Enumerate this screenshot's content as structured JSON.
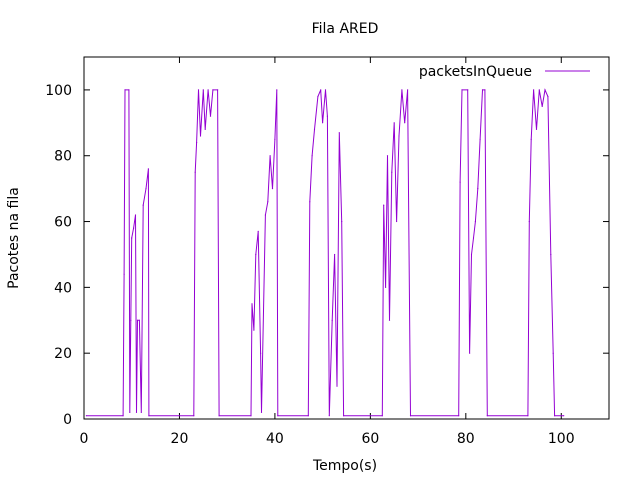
{
  "chart_data": {
    "type": "line",
    "title": "Fila ARED",
    "xlabel": "Tempo(s)",
    "ylabel": "Pacotes na fila",
    "xlim": [
      0,
      110
    ],
    "ylim": [
      0,
      110
    ],
    "xticks": [
      0,
      20,
      40,
      60,
      80,
      100
    ],
    "yticks": [
      0,
      20,
      40,
      60,
      80,
      100
    ],
    "grid": false,
    "legend_position": "top-right",
    "series": [
      {
        "name": "packetsInQueue",
        "color": "#9400d3",
        "points": [
          [
            0.5,
            1
          ],
          [
            8.2,
            1
          ],
          [
            8.4,
            44
          ],
          [
            8.6,
            100
          ],
          [
            9.4,
            100
          ],
          [
            9.6,
            2
          ],
          [
            9.8,
            30
          ],
          [
            10.0,
            55
          ],
          [
            10.4,
            58
          ],
          [
            10.8,
            62
          ],
          [
            11.0,
            2
          ],
          [
            11.2,
            30
          ],
          [
            11.6,
            30
          ],
          [
            12.0,
            2
          ],
          [
            12.4,
            65
          ],
          [
            13.0,
            70
          ],
          [
            13.5,
            76
          ],
          [
            13.6,
            1
          ],
          [
            23.0,
            1
          ],
          [
            23.3,
            75
          ],
          [
            23.6,
            84
          ],
          [
            24.0,
            100
          ],
          [
            24.4,
            86
          ],
          [
            25.0,
            100
          ],
          [
            25.4,
            88
          ],
          [
            26.0,
            100
          ],
          [
            26.5,
            92
          ],
          [
            27.0,
            100
          ],
          [
            28.0,
            100
          ],
          [
            28.3,
            1
          ],
          [
            35.0,
            1
          ],
          [
            35.2,
            35
          ],
          [
            35.6,
            27
          ],
          [
            36.0,
            50
          ],
          [
            36.5,
            57
          ],
          [
            37.0,
            20
          ],
          [
            37.2,
            2
          ],
          [
            38.0,
            62
          ],
          [
            38.5,
            66
          ],
          [
            39.0,
            80
          ],
          [
            39.5,
            70
          ],
          [
            40.0,
            85
          ],
          [
            40.4,
            100
          ],
          [
            40.6,
            1
          ],
          [
            47.0,
            1
          ],
          [
            47.3,
            66
          ],
          [
            47.8,
            80
          ],
          [
            48.3,
            88
          ],
          [
            49.0,
            98
          ],
          [
            49.6,
            100
          ],
          [
            50.0,
            90
          ],
          [
            50.6,
            100
          ],
          [
            51.0,
            92
          ],
          [
            51.4,
            1
          ],
          [
            52.0,
            30
          ],
          [
            52.5,
            50
          ],
          [
            53.0,
            10
          ],
          [
            53.5,
            87
          ],
          [
            54.0,
            60
          ],
          [
            54.4,
            1
          ],
          [
            62.5,
            1
          ],
          [
            62.8,
            65
          ],
          [
            63.2,
            40
          ],
          [
            63.6,
            80
          ],
          [
            64.0,
            30
          ],
          [
            64.5,
            75
          ],
          [
            65.0,
            90
          ],
          [
            65.5,
            60
          ],
          [
            66.0,
            86
          ],
          [
            66.6,
            100
          ],
          [
            67.2,
            90
          ],
          [
            67.8,
            100
          ],
          [
            68.4,
            1
          ],
          [
            78.5,
            1
          ],
          [
            78.8,
            72
          ],
          [
            79.2,
            100
          ],
          [
            80.4,
            100
          ],
          [
            80.8,
            20
          ],
          [
            81.2,
            50
          ],
          [
            81.6,
            55
          ],
          [
            82.0,
            60
          ],
          [
            82.5,
            70
          ],
          [
            83.0,
            85
          ],
          [
            83.5,
            100
          ],
          [
            84.0,
            100
          ],
          [
            84.5,
            1
          ],
          [
            93.0,
            1
          ],
          [
            93.3,
            60
          ],
          [
            93.7,
            85
          ],
          [
            94.2,
            100
          ],
          [
            94.8,
            88
          ],
          [
            95.4,
            100
          ],
          [
            96.0,
            95
          ],
          [
            96.6,
            100
          ],
          [
            97.2,
            98
          ],
          [
            97.8,
            50
          ],
          [
            98.3,
            20
          ],
          [
            98.6,
            1
          ],
          [
            100.5,
            1
          ]
        ]
      }
    ]
  }
}
